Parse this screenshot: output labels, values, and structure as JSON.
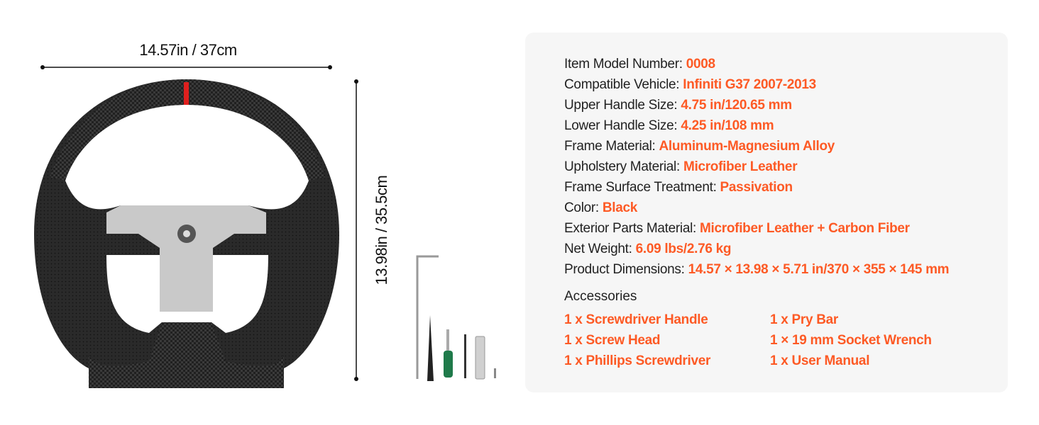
{
  "dimensions": {
    "width_label": "14.57in / 37cm",
    "height_label": "13.98in / 35.5cm"
  },
  "colors": {
    "accent": "#fd5a25",
    "panel_bg": "#f6f6f6",
    "stripe": "#e0201e"
  },
  "specs": [
    {
      "label": "Item Model Number: ",
      "value": "0008"
    },
    {
      "label": "Compatible Vehicle: ",
      "value": "Infiniti G37 2007-2013"
    },
    {
      "label": "Upper Handle Size: ",
      "value": "4.75 in/120.65 mm"
    },
    {
      "label": "Lower Handle Size: ",
      "value": "4.25 in/108 mm"
    },
    {
      "label": "Frame Material: ",
      "value": "Aluminum-Magnesium Alloy"
    },
    {
      "label": "Upholstery Material: ",
      "value": "Microfiber Leather"
    },
    {
      "label": "Frame Surface Treatment: ",
      "value": "Passivation"
    },
    {
      "label": "Color: ",
      "value": "Black"
    },
    {
      "label": "Exterior Parts Material: ",
      "value": "Microfiber Leather + Carbon Fiber"
    },
    {
      "label": "Net Weight: ",
      "value": "6.09 lbs/2.76 kg"
    },
    {
      "label": "Product Dimensions: ",
      "value": "14.57 × 13.98 × 5.71 in/370 × 355 × 145 mm"
    }
  ],
  "accessories": {
    "title": "Accessories",
    "items": [
      "1 x Screwdriver Handle",
      "1 x Pry Bar",
      "1 x Screw Head",
      "1 × 19 mm Socket Wrench",
      "1 x Phillips Screwdriver",
      "1 x User Manual"
    ]
  }
}
